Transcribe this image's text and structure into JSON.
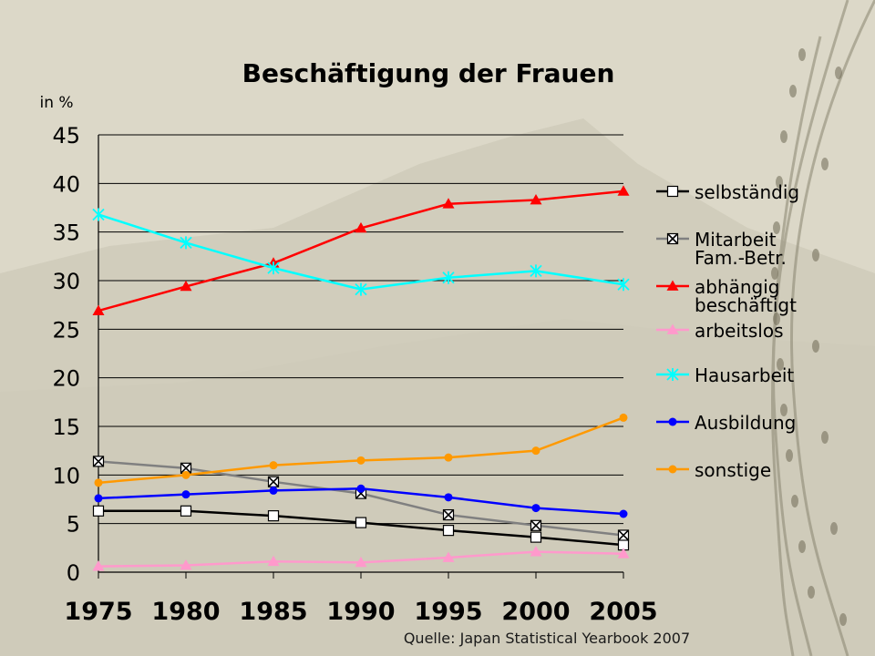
{
  "chart_data": {
    "type": "line",
    "title": "Beschäftigung der Frauen",
    "ylabel": "in %",
    "source": "Quelle: Japan Statistical Yearbook 2007",
    "x": [
      "1975",
      "1980",
      "1985",
      "1990",
      "1995",
      "2000",
      "2005"
    ],
    "yticks": [
      "0",
      "5",
      "10",
      "15",
      "20",
      "25",
      "30",
      "35",
      "40",
      "45"
    ],
    "ylim": [
      0,
      45
    ],
    "grid": true,
    "legend_position": "right",
    "series": [
      {
        "name": "selbständig",
        "label_lines": [
          "selbständig"
        ],
        "color": "#000000",
        "marker": "square-open",
        "values": [
          6.3,
          6.3,
          5.8,
          5.1,
          4.3,
          3.6,
          2.8
        ]
      },
      {
        "name": "Mitarbeit Fam.-Betr.",
        "label_lines": [
          "Mitarbeit",
          "Fam.-Betr."
        ],
        "color": "#808080",
        "marker": "square-x",
        "values": [
          11.4,
          10.7,
          9.3,
          8.1,
          5.9,
          4.8,
          3.8
        ]
      },
      {
        "name": "abhängig beschäftigt",
        "label_lines": [
          "abhängig",
          "beschäftigt"
        ],
        "color": "#ff0000",
        "marker": "triangle",
        "values": [
          26.9,
          29.4,
          31.8,
          35.4,
          37.9,
          38.3,
          39.2
        ]
      },
      {
        "name": "arbeitslos",
        "label_lines": [
          "arbeitslos"
        ],
        "color": "#ff99cc",
        "marker": "triangle",
        "values": [
          0.6,
          0.7,
          1.1,
          1.0,
          1.5,
          2.1,
          1.9
        ]
      },
      {
        "name": "Hausarbeit",
        "label_lines": [
          "Hausarbeit"
        ],
        "color": "#00ffff",
        "marker": "asterisk",
        "values": [
          36.8,
          33.9,
          31.3,
          29.1,
          30.3,
          31.0,
          29.6
        ]
      },
      {
        "name": "Ausbildung",
        "label_lines": [
          "Ausbildung"
        ],
        "color": "#0000ff",
        "marker": "circle",
        "values": [
          7.6,
          8.0,
          8.4,
          8.6,
          7.7,
          6.6,
          6.0
        ]
      },
      {
        "name": "sonstige",
        "label_lines": [
          "sonstige"
        ],
        "color": "#ff9900",
        "marker": "circle",
        "values": [
          9.2,
          10.0,
          11.0,
          11.5,
          11.8,
          12.5,
          15.9
        ]
      }
    ]
  }
}
